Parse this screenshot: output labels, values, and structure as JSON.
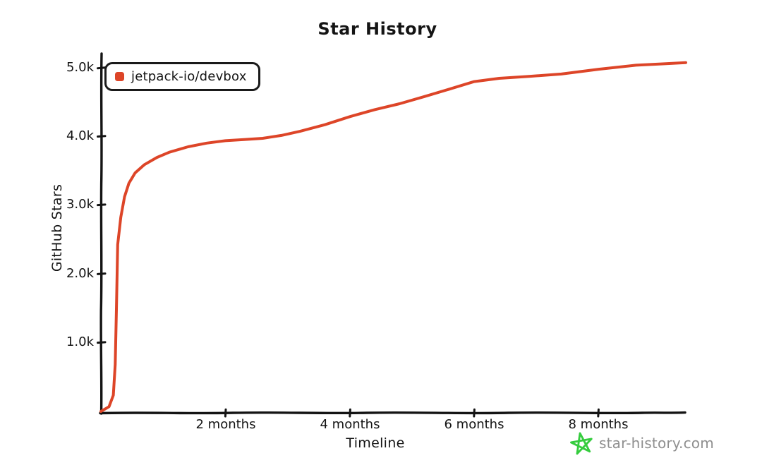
{
  "title": "Star History",
  "legend": {
    "series_label": "jetpack-io/devbox",
    "marker_color": "#dd4528"
  },
  "axes": {
    "y_label": "GitHub Stars",
    "x_label": "Timeline",
    "y_ticks": [
      "5.0k",
      "4.0k",
      "3.0k",
      "2.0k",
      "1.0k"
    ],
    "x_ticks": [
      "2 months",
      "4 months",
      "6 months",
      "8 months"
    ]
  },
  "watermark": {
    "text": "star-history.com",
    "text_color": "#8f8f8f",
    "star_icon_color": "#35cc3e"
  },
  "chart_data": {
    "type": "line",
    "style": "xkcd-sketch",
    "title": "Star History",
    "xlabel": "Timeline",
    "ylabel": "GitHub Stars",
    "x_unit": "months",
    "xlim": [
      0,
      9.4
    ],
    "ylim": [
      0,
      5200
    ],
    "x_tick_values": [
      2,
      4,
      6,
      8
    ],
    "y_tick_values": [
      1000,
      2000,
      3000,
      4000,
      5000
    ],
    "grid": false,
    "legend_position": "top-left",
    "series": [
      {
        "name": "jetpack-io/devbox",
        "color": "#dd4528",
        "points": [
          {
            "x": 0.0,
            "y": 0
          },
          {
            "x": 0.13,
            "y": 80
          },
          {
            "x": 0.2,
            "y": 250
          },
          {
            "x": 0.23,
            "y": 700
          },
          {
            "x": 0.25,
            "y": 1500
          },
          {
            "x": 0.27,
            "y": 2450
          },
          {
            "x": 0.32,
            "y": 2850
          },
          {
            "x": 0.38,
            "y": 3150
          },
          {
            "x": 0.45,
            "y": 3350
          },
          {
            "x": 0.55,
            "y": 3500
          },
          {
            "x": 0.7,
            "y": 3620
          },
          {
            "x": 0.9,
            "y": 3720
          },
          {
            "x": 1.1,
            "y": 3790
          },
          {
            "x": 1.4,
            "y": 3860
          },
          {
            "x": 1.7,
            "y": 3910
          },
          {
            "x": 2.0,
            "y": 3950
          },
          {
            "x": 2.3,
            "y": 3975
          },
          {
            "x": 2.6,
            "y": 4000
          },
          {
            "x": 2.9,
            "y": 4040
          },
          {
            "x": 3.2,
            "y": 4090
          },
          {
            "x": 3.6,
            "y": 4170
          },
          {
            "x": 4.0,
            "y": 4280
          },
          {
            "x": 4.4,
            "y": 4390
          },
          {
            "x": 4.8,
            "y": 4490
          },
          {
            "x": 5.2,
            "y": 4600
          },
          {
            "x": 5.6,
            "y": 4700
          },
          {
            "x": 6.0,
            "y": 4800
          },
          {
            "x": 6.4,
            "y": 4850
          },
          {
            "x": 6.9,
            "y": 4900
          },
          {
            "x": 7.4,
            "y": 4945
          },
          {
            "x": 8.0,
            "y": 5000
          },
          {
            "x": 8.6,
            "y": 5045
          },
          {
            "x": 9.0,
            "y": 5070
          },
          {
            "x": 9.4,
            "y": 5100
          }
        ]
      }
    ]
  }
}
